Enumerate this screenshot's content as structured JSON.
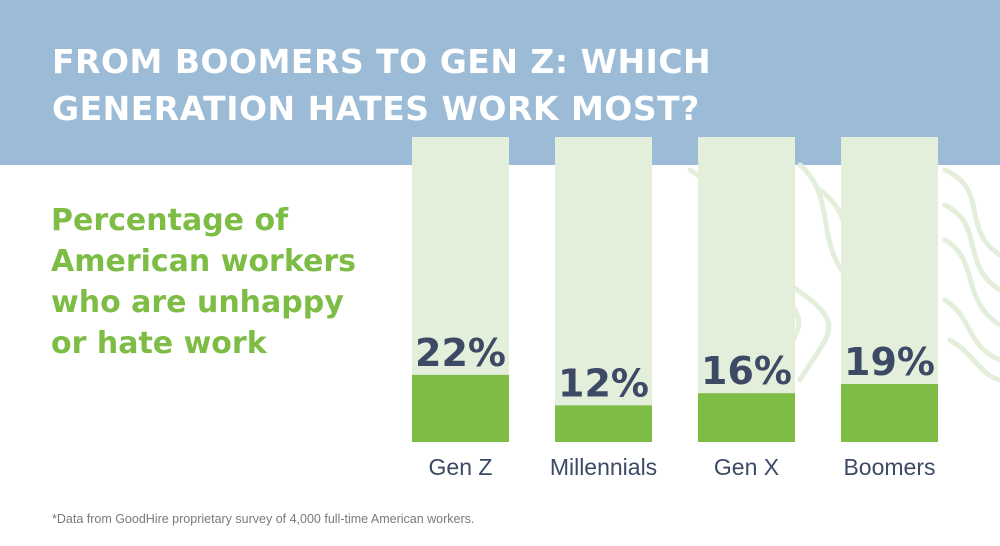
{
  "title_lines": [
    "FROM BOOMERS TO GEN Z: WHICH",
    "GENERATION HATES WORK MOST?"
  ],
  "subtitle_lines": [
    "Percentage of",
    "American workers",
    "who are unhappy",
    "or hate work"
  ],
  "footnote": "*Data from GoodHire proprietary survey of 4,000 full-time American workers.",
  "colors": {
    "header": "#9bbbd6",
    "bar_track": "#e3eedb",
    "bar_fill": "#7dbd45",
    "value_label": "#3d4a66",
    "category_label": "#3d4a66",
    "title": "#ffffff",
    "subtitle": "#7dbd45"
  },
  "chart_data": {
    "type": "bar",
    "categories": [
      "Gen Z",
      "Millennials",
      "Gen X",
      "Boomers"
    ],
    "values": [
      22,
      12,
      16,
      19
    ],
    "value_labels": [
      "22%",
      "12%",
      "16%",
      "19%"
    ],
    "ylim": [
      0,
      100
    ],
    "grid": false,
    "title": "",
    "xlabel": "",
    "ylabel": ""
  }
}
